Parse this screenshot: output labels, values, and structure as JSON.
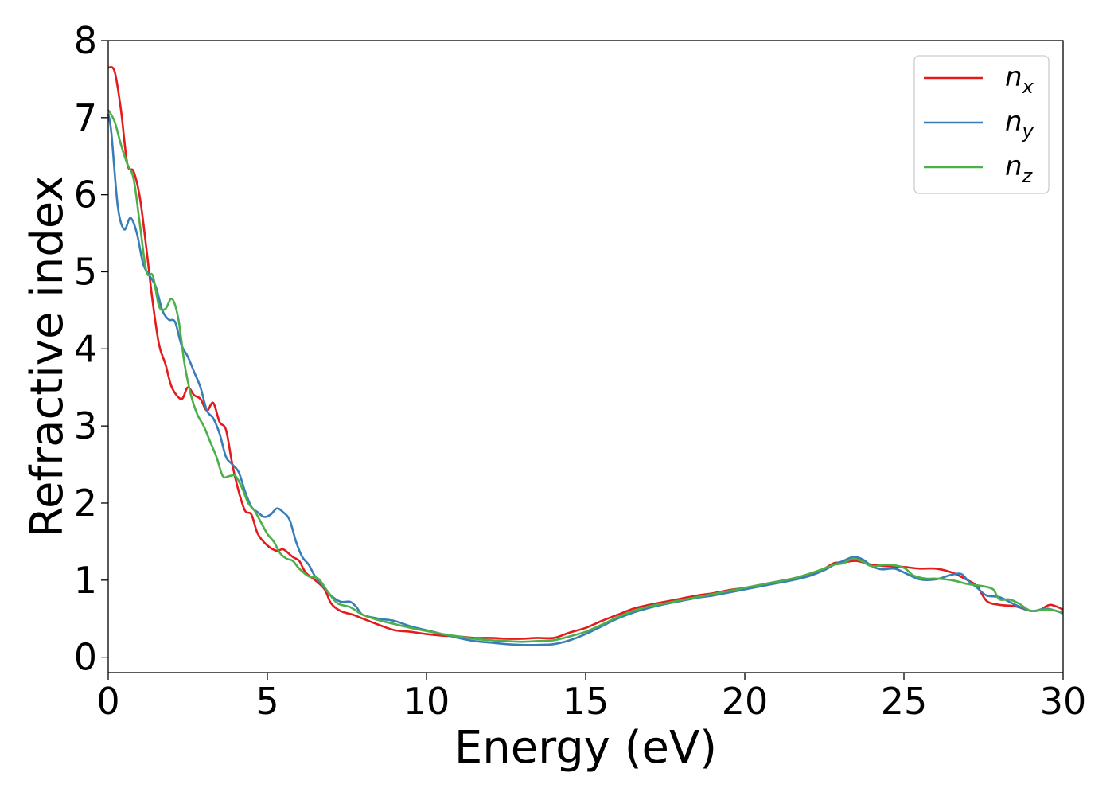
{
  "chart_data": {
    "type": "line",
    "xlabel": "Energy (eV)",
    "ylabel": "Refractive index",
    "xlim": [
      0,
      30
    ],
    "ylim": [
      -0.2,
      8
    ],
    "xticks": [
      0,
      5,
      10,
      15,
      20,
      25,
      30
    ],
    "yticks": [
      0,
      1,
      2,
      3,
      4,
      5,
      6,
      7,
      8
    ],
    "xtick_labels": [
      "0",
      "5",
      "10",
      "15",
      "20",
      "25",
      "30"
    ],
    "ytick_labels": [
      "0",
      "1",
      "2",
      "3",
      "4",
      "5",
      "6",
      "7",
      "8"
    ],
    "grid": false,
    "legend_position": "top-right",
    "series": [
      {
        "name": "n_x",
        "legend_main": "n",
        "legend_sub": "x",
        "color": "#e41a1c",
        "points": [
          [
            0,
            7.65
          ],
          [
            0.2,
            7.6
          ],
          [
            0.4,
            7.1
          ],
          [
            0.6,
            6.4
          ],
          [
            0.8,
            6.3
          ],
          [
            1.0,
            5.95
          ],
          [
            1.2,
            5.3
          ],
          [
            1.4,
            4.6
          ],
          [
            1.6,
            4.05
          ],
          [
            1.8,
            3.8
          ],
          [
            2.0,
            3.5
          ],
          [
            2.3,
            3.35
          ],
          [
            2.5,
            3.5
          ],
          [
            2.7,
            3.4
          ],
          [
            2.9,
            3.35
          ],
          [
            3.1,
            3.2
          ],
          [
            3.3,
            3.3
          ],
          [
            3.5,
            3.05
          ],
          [
            3.7,
            2.95
          ],
          [
            3.9,
            2.5
          ],
          [
            4.1,
            2.15
          ],
          [
            4.3,
            1.9
          ],
          [
            4.5,
            1.85
          ],
          [
            4.7,
            1.6
          ],
          [
            5.0,
            1.45
          ],
          [
            5.3,
            1.38
          ],
          [
            5.5,
            1.4
          ],
          [
            5.8,
            1.3
          ],
          [
            6.0,
            1.25
          ],
          [
            6.2,
            1.1
          ],
          [
            6.5,
            1.0
          ],
          [
            6.8,
            0.88
          ],
          [
            7.0,
            0.7
          ],
          [
            7.3,
            0.6
          ],
          [
            7.7,
            0.55
          ],
          [
            8.0,
            0.5
          ],
          [
            8.5,
            0.42
          ],
          [
            9.0,
            0.35
          ],
          [
            9.5,
            0.33
          ],
          [
            10,
            0.3
          ],
          [
            10.5,
            0.28
          ],
          [
            11,
            0.27
          ],
          [
            11.5,
            0.25
          ],
          [
            12,
            0.25
          ],
          [
            12.5,
            0.24
          ],
          [
            13,
            0.24
          ],
          [
            13.5,
            0.25
          ],
          [
            14,
            0.25
          ],
          [
            14.5,
            0.32
          ],
          [
            15,
            0.38
          ],
          [
            15.5,
            0.47
          ],
          [
            16,
            0.55
          ],
          [
            16.5,
            0.63
          ],
          [
            17,
            0.68
          ],
          [
            17.5,
            0.72
          ],
          [
            18,
            0.76
          ],
          [
            18.5,
            0.8
          ],
          [
            19,
            0.83
          ],
          [
            19.5,
            0.87
          ],
          [
            20,
            0.9
          ],
          [
            20.5,
            0.94
          ],
          [
            21,
            0.98
          ],
          [
            21.5,
            1.02
          ],
          [
            22,
            1.07
          ],
          [
            22.5,
            1.15
          ],
          [
            22.8,
            1.22
          ],
          [
            23.1,
            1.23
          ],
          [
            23.5,
            1.25
          ],
          [
            24,
            1.2
          ],
          [
            24.5,
            1.18
          ],
          [
            25,
            1.17
          ],
          [
            25.5,
            1.15
          ],
          [
            26,
            1.15
          ],
          [
            26.5,
            1.1
          ],
          [
            27,
            1.0
          ],
          [
            27.3,
            0.92
          ],
          [
            27.6,
            0.73
          ],
          [
            28,
            0.68
          ],
          [
            28.5,
            0.66
          ],
          [
            29,
            0.6
          ],
          [
            29.3,
            0.62
          ],
          [
            29.6,
            0.68
          ],
          [
            30,
            0.62
          ]
        ]
      },
      {
        "name": "n_y",
        "legend_main": "n",
        "legend_sub": "y",
        "color": "#377eb8",
        "points": [
          [
            0,
            7.05
          ],
          [
            0.1,
            6.8
          ],
          [
            0.3,
            5.85
          ],
          [
            0.5,
            5.55
          ],
          [
            0.7,
            5.7
          ],
          [
            0.9,
            5.5
          ],
          [
            1.1,
            5.1
          ],
          [
            1.3,
            4.95
          ],
          [
            1.5,
            4.8
          ],
          [
            1.7,
            4.5
          ],
          [
            1.9,
            4.38
          ],
          [
            2.1,
            4.35
          ],
          [
            2.3,
            4.05
          ],
          [
            2.5,
            3.9
          ],
          [
            2.7,
            3.7
          ],
          [
            2.9,
            3.5
          ],
          [
            3.1,
            3.2
          ],
          [
            3.3,
            3.1
          ],
          [
            3.5,
            2.9
          ],
          [
            3.7,
            2.6
          ],
          [
            3.9,
            2.5
          ],
          [
            4.1,
            2.4
          ],
          [
            4.3,
            2.15
          ],
          [
            4.5,
            1.95
          ],
          [
            4.7,
            1.88
          ],
          [
            4.9,
            1.82
          ],
          [
            5.1,
            1.85
          ],
          [
            5.3,
            1.93
          ],
          [
            5.5,
            1.88
          ],
          [
            5.7,
            1.78
          ],
          [
            5.9,
            1.5
          ],
          [
            6.1,
            1.3
          ],
          [
            6.3,
            1.2
          ],
          [
            6.5,
            1.05
          ],
          [
            6.8,
            0.9
          ],
          [
            7.0,
            0.8
          ],
          [
            7.3,
            0.72
          ],
          [
            7.6,
            0.72
          ],
          [
            7.8,
            0.65
          ],
          [
            8.0,
            0.55
          ],
          [
            8.5,
            0.5
          ],
          [
            9.0,
            0.47
          ],
          [
            9.5,
            0.4
          ],
          [
            10,
            0.35
          ],
          [
            10.5,
            0.3
          ],
          [
            11,
            0.25
          ],
          [
            11.5,
            0.21
          ],
          [
            12,
            0.19
          ],
          [
            12.5,
            0.17
          ],
          [
            13,
            0.16
          ],
          [
            13.5,
            0.16
          ],
          [
            14,
            0.17
          ],
          [
            14.5,
            0.22
          ],
          [
            15,
            0.3
          ],
          [
            15.5,
            0.4
          ],
          [
            16,
            0.5
          ],
          [
            16.5,
            0.58
          ],
          [
            17,
            0.64
          ],
          [
            17.5,
            0.69
          ],
          [
            18,
            0.73
          ],
          [
            18.5,
            0.77
          ],
          [
            19,
            0.8
          ],
          [
            19.5,
            0.84
          ],
          [
            20,
            0.88
          ],
          [
            20.5,
            0.92
          ],
          [
            21,
            0.96
          ],
          [
            21.5,
            1.0
          ],
          [
            22,
            1.05
          ],
          [
            22.5,
            1.13
          ],
          [
            22.8,
            1.2
          ],
          [
            23.1,
            1.25
          ],
          [
            23.4,
            1.3
          ],
          [
            23.7,
            1.27
          ],
          [
            24.0,
            1.18
          ],
          [
            24.3,
            1.14
          ],
          [
            24.7,
            1.15
          ],
          [
            25.0,
            1.1
          ],
          [
            25.5,
            1.01
          ],
          [
            26,
            1.01
          ],
          [
            26.5,
            1.07
          ],
          [
            26.8,
            1.08
          ],
          [
            27,
            1.0
          ],
          [
            27.3,
            0.9
          ],
          [
            27.6,
            0.8
          ],
          [
            28,
            0.78
          ],
          [
            28.5,
            0.68
          ],
          [
            29,
            0.6
          ],
          [
            29.5,
            0.63
          ],
          [
            30,
            0.57
          ]
        ]
      },
      {
        "name": "n_z",
        "legend_main": "n",
        "legend_sub": "z",
        "color": "#4daf4a",
        "points": [
          [
            0,
            7.1
          ],
          [
            0.2,
            6.95
          ],
          [
            0.4,
            6.65
          ],
          [
            0.6,
            6.4
          ],
          [
            0.8,
            6.2
          ],
          [
            1.0,
            5.6
          ],
          [
            1.2,
            5.0
          ],
          [
            1.4,
            4.95
          ],
          [
            1.6,
            4.55
          ],
          [
            1.8,
            4.52
          ],
          [
            2.0,
            4.65
          ],
          [
            2.2,
            4.4
          ],
          [
            2.4,
            3.8
          ],
          [
            2.6,
            3.4
          ],
          [
            2.8,
            3.15
          ],
          [
            3.0,
            3.0
          ],
          [
            3.2,
            2.8
          ],
          [
            3.4,
            2.6
          ],
          [
            3.6,
            2.35
          ],
          [
            3.8,
            2.35
          ],
          [
            4.0,
            2.35
          ],
          [
            4.2,
            2.2
          ],
          [
            4.4,
            2.0
          ],
          [
            4.6,
            1.9
          ],
          [
            4.8,
            1.75
          ],
          [
            5.0,
            1.6
          ],
          [
            5.2,
            1.5
          ],
          [
            5.4,
            1.35
          ],
          [
            5.6,
            1.28
          ],
          [
            5.8,
            1.25
          ],
          [
            6.0,
            1.15
          ],
          [
            6.3,
            1.05
          ],
          [
            6.6,
            1.02
          ],
          [
            6.9,
            0.85
          ],
          [
            7.2,
            0.7
          ],
          [
            7.6,
            0.65
          ],
          [
            8.0,
            0.55
          ],
          [
            8.5,
            0.48
          ],
          [
            9.0,
            0.43
          ],
          [
            9.5,
            0.38
          ],
          [
            10,
            0.34
          ],
          [
            10.5,
            0.3
          ],
          [
            11,
            0.27
          ],
          [
            11.5,
            0.24
          ],
          [
            12,
            0.22
          ],
          [
            12.5,
            0.21
          ],
          [
            13,
            0.2
          ],
          [
            13.5,
            0.21
          ],
          [
            14,
            0.22
          ],
          [
            14.5,
            0.27
          ],
          [
            15,
            0.33
          ],
          [
            15.5,
            0.42
          ],
          [
            16,
            0.52
          ],
          [
            16.5,
            0.6
          ],
          [
            17,
            0.66
          ],
          [
            17.5,
            0.7
          ],
          [
            18,
            0.74
          ],
          [
            18.5,
            0.78
          ],
          [
            19,
            0.82
          ],
          [
            19.5,
            0.86
          ],
          [
            20,
            0.9
          ],
          [
            20.5,
            0.94
          ],
          [
            21,
            0.98
          ],
          [
            21.5,
            1.02
          ],
          [
            22,
            1.08
          ],
          [
            22.5,
            1.15
          ],
          [
            22.8,
            1.2
          ],
          [
            23.1,
            1.22
          ],
          [
            23.4,
            1.28
          ],
          [
            23.7,
            1.24
          ],
          [
            24.0,
            1.18
          ],
          [
            24.5,
            1.2
          ],
          [
            25,
            1.16
          ],
          [
            25.3,
            1.06
          ],
          [
            25.7,
            1.02
          ],
          [
            26,
            1.02
          ],
          [
            26.5,
            1.0
          ],
          [
            27,
            0.95
          ],
          [
            27.5,
            0.92
          ],
          [
            27.8,
            0.88
          ],
          [
            28,
            0.75
          ],
          [
            28.3,
            0.75
          ],
          [
            28.6,
            0.7
          ],
          [
            29,
            0.6
          ],
          [
            29.5,
            0.62
          ],
          [
            30,
            0.58
          ]
        ]
      }
    ]
  }
}
